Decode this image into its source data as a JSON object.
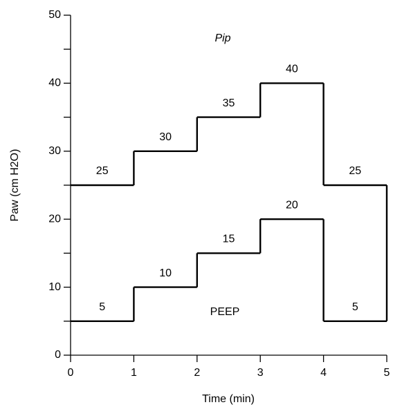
{
  "chart_data": {
    "type": "step",
    "xlabel": "Time (min)",
    "ylabel": "Paw (cm H2O)",
    "x": [
      0,
      1,
      2,
      3,
      4
    ],
    "series": [
      {
        "name": "Pip",
        "color": "#000000",
        "values": [
          25,
          30,
          35,
          40,
          25
        ]
      },
      {
        "name": "PEEP",
        "color": "#000000",
        "values": [
          5,
          10,
          15,
          20,
          5
        ]
      }
    ],
    "xlim": [
      0,
      5
    ],
    "xticks": [
      0,
      1,
      2,
      3,
      4,
      5
    ],
    "ylim": [
      0,
      50
    ],
    "yticks": [
      0,
      10,
      20,
      30,
      40,
      50
    ],
    "yminorticks": [
      5,
      15,
      25,
      35,
      45
    ],
    "grid": false
  }
}
